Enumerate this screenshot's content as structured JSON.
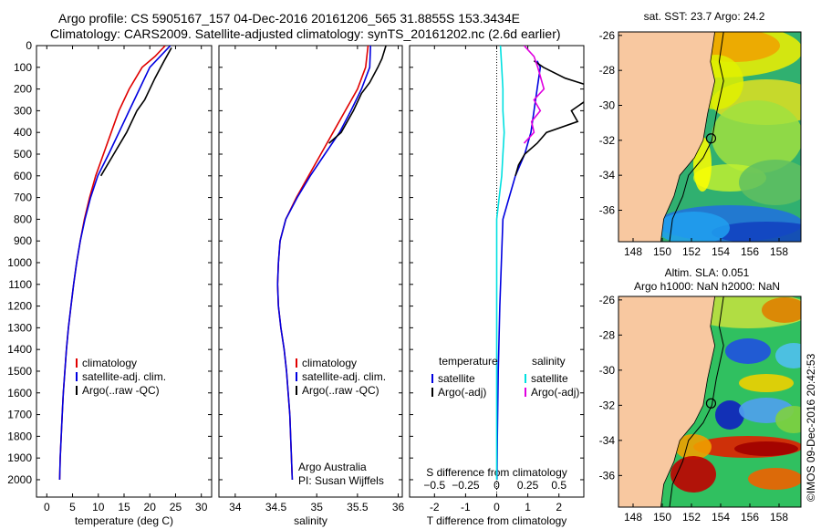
{
  "header": {
    "line1": "Argo profile: CS 5905167_157 04-Dec-2016 20161206_565 31.8855S 153.3434E",
    "line2": "Climatology: CARS2009. Satellite-adjusted climatology: synTS_20161202.nc (2.6d earlier)"
  },
  "colors": {
    "red": "#e00000",
    "blue": "#0000e0",
    "black": "#000000",
    "cyan": "#00e0e0",
    "magenta": "#e000e0",
    "land": "#f8c8a0"
  },
  "chart_data": [
    {
      "type": "line",
      "id": "temperature",
      "xlabel": "temperature (deg C)",
      "x_ticks": [
        0,
        5,
        10,
        15,
        20,
        25,
        30
      ],
      "y_ticks": [
        0,
        100,
        200,
        300,
        400,
        500,
        600,
        700,
        800,
        900,
        1000,
        1100,
        1200,
        1300,
        1400,
        1500,
        1600,
        1700,
        1800,
        1900,
        2000
      ],
      "xlim": [
        -2,
        32
      ],
      "ylim": [
        2080,
        0
      ],
      "legend": [
        "climatology",
        "satellite-adj. clim.",
        "Argo(..raw -QC)"
      ],
      "series": [
        {
          "name": "climatology",
          "color": "red",
          "points": [
            [
              23,
              0
            ],
            [
              21,
              50
            ],
            [
              18.5,
              100
            ],
            [
              16,
              200
            ],
            [
              14,
              300
            ],
            [
              12.5,
              400
            ],
            [
              11,
              500
            ],
            [
              9.5,
              600
            ],
            [
              8.3,
              700
            ],
            [
              7.3,
              800
            ],
            [
              6.5,
              900
            ],
            [
              5.8,
              1000
            ],
            [
              5.2,
              1100
            ],
            [
              4.7,
              1200
            ],
            [
              4.2,
              1300
            ],
            [
              3.8,
              1400
            ],
            [
              3.5,
              1500
            ],
            [
              3.2,
              1600
            ],
            [
              3,
              1700
            ],
            [
              2.8,
              1800
            ],
            [
              2.6,
              1900
            ],
            [
              2.5,
              2000
            ]
          ]
        },
        {
          "name": "satellite-adj. clim.",
          "color": "blue",
          "points": [
            [
              24,
              0
            ],
            [
              22,
              50
            ],
            [
              20,
              100
            ],
            [
              18,
              200
            ],
            [
              16,
              300
            ],
            [
              14,
              400
            ],
            [
              12,
              500
            ],
            [
              9.9,
              600
            ],
            [
              8.5,
              700
            ],
            [
              7.4,
              800
            ],
            [
              6.5,
              900
            ],
            [
              5.8,
              1000
            ],
            [
              5.2,
              1100
            ],
            [
              4.7,
              1200
            ],
            [
              4.2,
              1300
            ],
            [
              3.8,
              1400
            ],
            [
              3.5,
              1500
            ],
            [
              3.2,
              1600
            ],
            [
              3,
              1700
            ],
            [
              2.8,
              1800
            ],
            [
              2.6,
              1900
            ],
            [
              2.5,
              2000
            ]
          ]
        },
        {
          "name": "Argo(..raw -QC)",
          "color": "black",
          "points": [
            [
              24.2,
              10
            ],
            [
              22.8,
              70
            ],
            [
              21,
              150
            ],
            [
              19,
              250
            ],
            [
              17.5,
              300
            ],
            [
              15.5,
              400
            ],
            [
              13,
              500
            ],
            [
              10.5,
              600
            ]
          ]
        }
      ]
    },
    {
      "type": "line",
      "id": "salinity",
      "xlabel": "salinity",
      "x_ticks": [
        34,
        34.5,
        35,
        35.5,
        36
      ],
      "x_tick_labels": [
        "34",
        "34.5",
        "35",
        "35.5",
        "36"
      ],
      "y_ticks": [
        0,
        100,
        200,
        300,
        400,
        500,
        600,
        700,
        800,
        900,
        1000,
        1100,
        1200,
        1300,
        1400,
        1500,
        1600,
        1700,
        1800,
        1900,
        2000
      ],
      "xlim": [
        33.8,
        36.05
      ],
      "ylim": [
        2080,
        0
      ],
      "legend": [
        "climatology",
        "satellite-adj. clim.",
        "Argo(..raw -QC)"
      ],
      "annotations": [
        "Argo Australia",
        "PI: Susan Wijffels"
      ],
      "series": [
        {
          "name": "climatology",
          "color": "red",
          "points": [
            [
              35.63,
              0
            ],
            [
              35.6,
              100
            ],
            [
              35.5,
              200
            ],
            [
              35.35,
              300
            ],
            [
              35.2,
              400
            ],
            [
              35.05,
              500
            ],
            [
              34.9,
              600
            ],
            [
              34.75,
              700
            ],
            [
              34.62,
              800
            ],
            [
              34.55,
              900
            ],
            [
              34.53,
              1000
            ],
            [
              34.52,
              1100
            ],
            [
              34.53,
              1200
            ],
            [
              34.56,
              1300
            ],
            [
              34.6,
              1400
            ],
            [
              34.63,
              1500
            ],
            [
              34.65,
              1600
            ],
            [
              34.67,
              1700
            ],
            [
              34.68,
              1800
            ],
            [
              34.69,
              1900
            ],
            [
              34.7,
              2000
            ]
          ]
        },
        {
          "name": "satellite-adj. clim.",
          "color": "blue",
          "points": [
            [
              35.66,
              0
            ],
            [
              35.65,
              100
            ],
            [
              35.55,
              200
            ],
            [
              35.42,
              300
            ],
            [
              35.28,
              400
            ],
            [
              35.1,
              500
            ],
            [
              34.92,
              600
            ],
            [
              34.76,
              700
            ],
            [
              34.62,
              800
            ],
            [
              34.55,
              900
            ],
            [
              34.53,
              1000
            ],
            [
              34.52,
              1100
            ],
            [
              34.53,
              1200
            ],
            [
              34.56,
              1300
            ],
            [
              34.6,
              1400
            ],
            [
              34.63,
              1500
            ],
            [
              34.65,
              1600
            ],
            [
              34.67,
              1700
            ],
            [
              34.68,
              1800
            ],
            [
              34.69,
              1900
            ],
            [
              34.7,
              2000
            ]
          ]
        },
        {
          "name": "Argo(..raw -QC)",
          "color": "black",
          "points": [
            [
              35.85,
              0
            ],
            [
              35.8,
              60
            ],
            [
              35.75,
              100
            ],
            [
              35.65,
              170
            ],
            [
              35.55,
              220
            ],
            [
              35.45,
              300
            ],
            [
              35.3,
              400
            ],
            [
              35.15,
              450
            ]
          ]
        }
      ]
    },
    {
      "type": "line",
      "id": "difference",
      "xlabel": "T difference from climatology",
      "top_axis_label": "S difference from climatology",
      "x_ticks": [
        -2,
        -1,
        0,
        1,
        2
      ],
      "s_ticks": [
        -0.5,
        -0.25,
        0,
        0.25,
        0.5
      ],
      "s_tick_labels": [
        "−0.5",
        "−0.25",
        "0",
        "0.25",
        "0.5"
      ],
      "y_ticks": [
        0,
        100,
        200,
        300,
        400,
        500,
        600,
        700,
        800,
        900,
        1000,
        1100,
        1200,
        1300,
        1400,
        1500,
        1600,
        1700,
        1800,
        1900,
        2000
      ],
      "xlim": [
        -2.8,
        2.8
      ],
      "ylim": [
        2080,
        0
      ],
      "legend_headers": [
        "temperature",
        "salinity"
      ],
      "legend": [
        "satellite",
        "Argo(-adj)",
        "satellite",
        "Argo(-adj)"
      ],
      "series": [
        {
          "name": "temperature satellite",
          "color": "blue",
          "points": [
            [
              1.3,
              70
            ],
            [
              1.4,
              100
            ],
            [
              1.3,
              200
            ],
            [
              1.2,
              300
            ],
            [
              1.1,
              400
            ],
            [
              0.9,
              500
            ],
            [
              0.6,
              600
            ],
            [
              0.4,
              700
            ],
            [
              0.2,
              800
            ],
            [
              0.15,
              1000
            ],
            [
              0.1,
              1200
            ],
            [
              0.05,
              1500
            ],
            [
              0.02,
              1800
            ],
            [
              0.01,
              2000
            ]
          ]
        },
        {
          "name": "temperature Argo(-adj)",
          "color": "black",
          "points": [
            [
              1.2,
              70
            ],
            [
              1.5,
              100
            ],
            [
              2.2,
              150
            ],
            [
              3.3,
              200
            ],
            [
              2.9,
              250
            ],
            [
              2.4,
              300
            ],
            [
              2.6,
              350
            ],
            [
              1.6,
              400
            ],
            [
              1.3,
              450
            ],
            [
              0.9,
              500
            ],
            [
              0.7,
              550
            ],
            [
              0.6,
              600
            ]
          ]
        },
        {
          "name": "salinity satellite",
          "color": "cyan",
          "points": [
            [
              0.03,
              0
            ],
            [
              0.04,
              100
            ],
            [
              0.05,
              200
            ],
            [
              0.05,
              300
            ],
            [
              0.06,
              400
            ],
            [
              0.05,
              500
            ],
            [
              0.04,
              600
            ],
            [
              0.02,
              700
            ],
            [
              0,
              800
            ],
            [
              0,
              1000
            ],
            [
              0,
              1500
            ],
            [
              0,
              2000
            ]
          ]
        },
        {
          "name": "salinity Argo(-adj)",
          "color": "magenta",
          "points": [
            [
              0.22,
              0
            ],
            [
              0.3,
              50
            ],
            [
              0.33,
              100
            ],
            [
              0.38,
              200
            ],
            [
              0.3,
              250
            ],
            [
              0.35,
              300
            ],
            [
              0.28,
              350
            ],
            [
              0.3,
              400
            ],
            [
              0.22,
              450
            ]
          ]
        }
      ]
    },
    {
      "type": "heatmap",
      "id": "sst-map",
      "title": "sat. SST: 23.7 Argo: 24.2",
      "x_ticks": [
        148,
        150,
        152,
        154,
        156,
        158
      ],
      "y_ticks": [
        -26,
        -28,
        -30,
        -32,
        -34,
        -36
      ],
      "xlim": [
        147,
        159.5
      ],
      "ylim": [
        -37.8,
        -25.8
      ],
      "marker": [
        153.34,
        -31.89
      ]
    },
    {
      "type": "heatmap",
      "id": "sla-map",
      "title": "Altim. SLA: 0.051",
      "subtitle": "Argo h1000: NaN h2000: NaN",
      "x_ticks": [
        148,
        150,
        152,
        154,
        156,
        158
      ],
      "y_ticks": [
        -26,
        -28,
        -30,
        -32,
        -34,
        -36
      ],
      "xlim": [
        147,
        159.5
      ],
      "ylim": [
        -37.8,
        -25.8
      ],
      "marker": [
        153.34,
        -31.89
      ]
    }
  ],
  "footer": {
    "credit": "©IMOS 09-Dec-2016 20:42:53"
  }
}
